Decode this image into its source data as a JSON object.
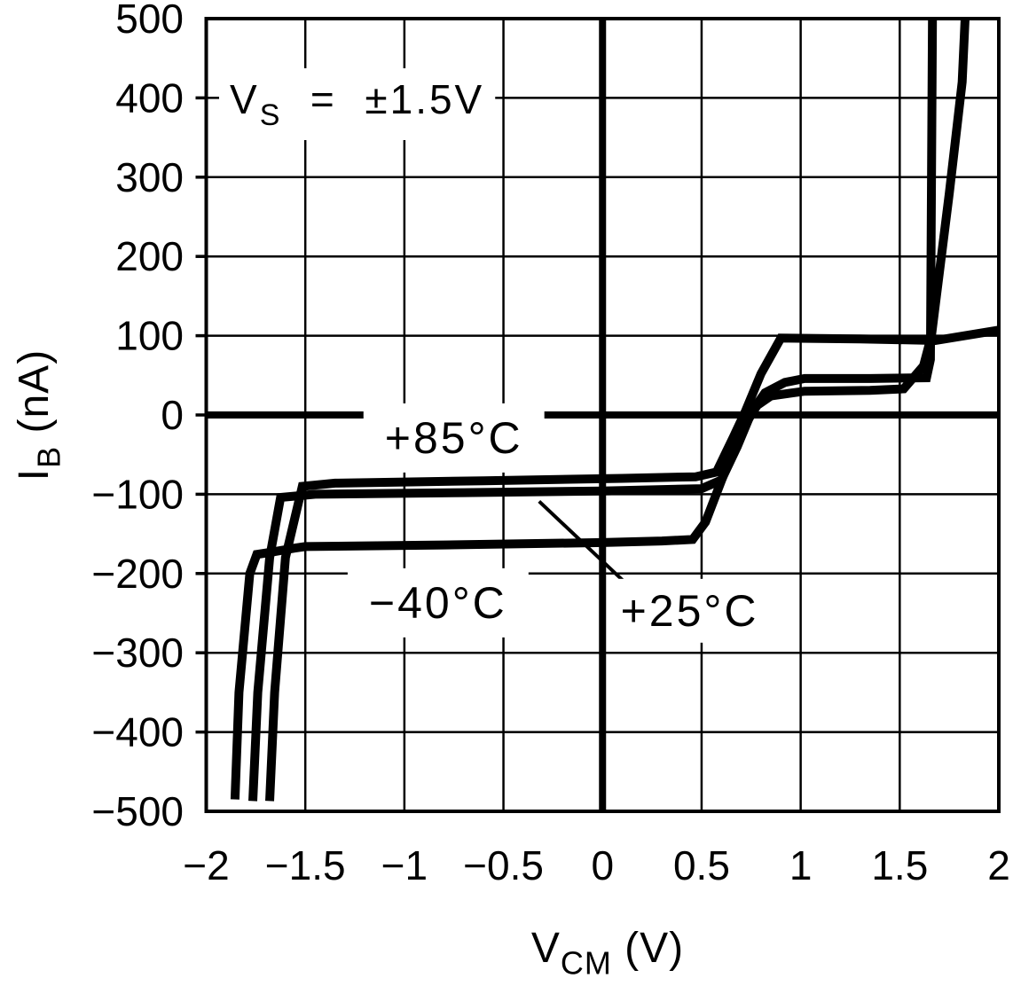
{
  "figure": {
    "background": "#ffffff",
    "ink_color": "#000000"
  },
  "chart_data": {
    "type": "line",
    "title": "",
    "background": "#ffffff",
    "color": "#000000",
    "grid": true,
    "legend_position": "inline-curve-labels",
    "annotation": {
      "var": "V",
      "sub": "S",
      "rest": "  =  ±1.5V"
    },
    "xlabel": {
      "var": "V",
      "sub": "CM",
      "rest": " (V)"
    },
    "ylabel": {
      "var": "I",
      "sub": "B",
      "rest": " (nA)"
    },
    "xlim": [
      -2,
      2
    ],
    "ylim": [
      -500,
      500
    ],
    "xticks": {
      "values": [
        -2,
        -1.5,
        -1,
        -0.5,
        0,
        0.5,
        1,
        1.5,
        2
      ],
      "labels": [
        "−2",
        "−1.5",
        "−1",
        "−0.5",
        "0",
        "0.5",
        "1",
        "1.5",
        "2"
      ]
    },
    "yticks": {
      "values": [
        500,
        400,
        300,
        200,
        100,
        0,
        -100,
        -200,
        -300,
        -400,
        -500
      ],
      "labels": [
        "500",
        "400",
        "300",
        "200",
        "100",
        "0",
        "−100",
        "−200",
        "−300",
        "−400",
        "−500"
      ]
    },
    "series": [
      {
        "id": "plus85c",
        "name": "+85°C",
        "label": "+85°C",
        "label_pos": [
          -0.75,
          -29
        ],
        "points": [
          [
            -1.68,
            -487
          ],
          [
            -1.655,
            -350
          ],
          [
            -1.6,
            -180
          ],
          [
            -1.515,
            -90
          ],
          [
            -1.35,
            -86
          ],
          [
            -0.6,
            -83
          ],
          [
            0.1,
            -80
          ],
          [
            0.47,
            -78
          ],
          [
            0.575,
            -72
          ],
          [
            0.66,
            -28
          ],
          [
            0.72,
            4
          ],
          [
            0.8,
            52
          ],
          [
            0.9,
            97
          ],
          [
            1.3,
            96
          ],
          [
            1.68,
            94
          ],
          [
            2.0,
            107
          ]
        ]
      },
      {
        "id": "plus25c",
        "name": "+25°C",
        "label": "+25°C",
        "label_pos": [
          0.44,
          -247
        ],
        "pointer": [
          [
            -0.32,
            -109
          ],
          [
            0.125,
            -214
          ]
        ],
        "points": [
          [
            -1.765,
            -487
          ],
          [
            -1.74,
            -350
          ],
          [
            -1.68,
            -180
          ],
          [
            -1.625,
            -104
          ],
          [
            -1.45,
            -100
          ],
          [
            -0.7,
            -98
          ],
          [
            0.0,
            -96
          ],
          [
            0.5,
            -93
          ],
          [
            0.6,
            -82
          ],
          [
            0.68,
            -40
          ],
          [
            0.755,
            5
          ],
          [
            0.82,
            28
          ],
          [
            0.92,
            41
          ],
          [
            1.02,
            46
          ],
          [
            1.35,
            46
          ],
          [
            1.635,
            47
          ],
          [
            1.655,
            70
          ],
          [
            1.665,
            500
          ]
        ]
      },
      {
        "id": "minus40c",
        "name": "-40°C",
        "label": "−40°C",
        "label_pos": [
          -0.83,
          -237
        ],
        "points": [
          [
            -1.855,
            -485
          ],
          [
            -1.835,
            -350
          ],
          [
            -1.78,
            -200
          ],
          [
            -1.745,
            -176
          ],
          [
            -1.67,
            -173
          ],
          [
            -1.555,
            -168
          ],
          [
            -1.5,
            -166
          ],
          [
            -0.8,
            -164
          ],
          [
            0.0,
            -161
          ],
          [
            0.3,
            -159
          ],
          [
            0.455,
            -157
          ],
          [
            0.52,
            -135
          ],
          [
            0.62,
            -70
          ],
          [
            0.7,
            -20
          ],
          [
            0.78,
            12
          ],
          [
            0.85,
            24
          ],
          [
            1.02,
            30
          ],
          [
            1.35,
            31
          ],
          [
            1.52,
            33
          ],
          [
            1.62,
            62
          ],
          [
            1.66,
            100
          ],
          [
            1.75,
            280
          ],
          [
            1.815,
            420
          ],
          [
            1.83,
            500
          ]
        ]
      }
    ]
  }
}
